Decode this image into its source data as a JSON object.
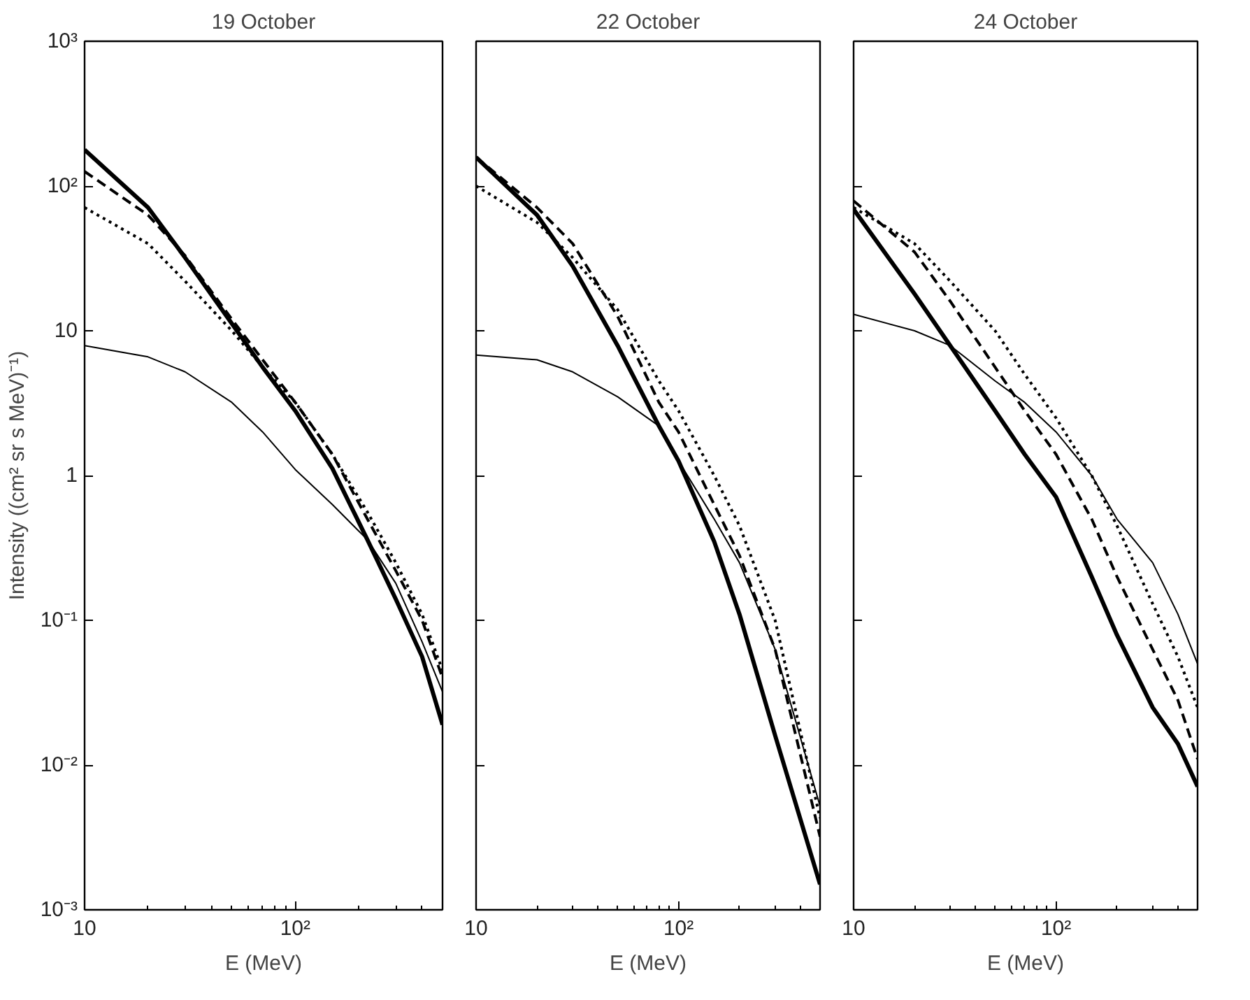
{
  "chart_data": [
    {
      "type": "line",
      "title": "19 October",
      "xlabel": "E (MeV)",
      "ylabel": "Intensity ((cm² sr s MeV)⁻¹)",
      "log": "xy",
      "grid": false,
      "xlim": [
        10,
        500
      ],
      "ylim": [
        0.001,
        1000
      ],
      "xticks": [
        10,
        {
          "value": 20,
          "label": null
        },
        {
          "value": 30,
          "label": null
        },
        {
          "value": 40,
          "label": null
        },
        {
          "value": 50,
          "label": null
        },
        {
          "value": 60,
          "label": null
        },
        {
          "value": 70,
          "label": null
        },
        {
          "value": 80,
          "label": null
        },
        {
          "value": 90,
          "label": null
        },
        {
          "value": 100,
          "label": "10²"
        },
        {
          "value": 200,
          "label": null
        },
        {
          "value": 300,
          "label": null
        },
        {
          "value": 400,
          "label": null
        },
        {
          "value": 500,
          "label": null
        }
      ],
      "yticks": [
        {
          "value": 0.001,
          "label": "10⁻³"
        },
        {
          "value": 0.01,
          "label": "10⁻²"
        },
        {
          "value": 0.1,
          "label": "10⁻¹"
        },
        1,
        10,
        {
          "value": 100,
          "label": "10²"
        },
        {
          "value": 1000,
          "label": "10³"
        }
      ],
      "x": [
        10,
        20,
        30,
        50,
        70,
        100,
        150,
        220,
        300,
        400,
        500
      ],
      "series": [
        {
          "color": "#000000",
          "line_style": "solid",
          "values": [
            178,
            71,
            32,
            11.2,
            5.6,
            2.8,
            1.12,
            0.36,
            0.14,
            0.056,
            0.019
          ]
        },
        {
          "color": "#000000",
          "line_style": "dashed",
          "values": [
            126,
            63,
            33,
            12,
            6.3,
            3.2,
            1.4,
            0.5,
            0.22,
            0.1,
            0.04
          ]
        },
        {
          "color": "#000000",
          "line_style": "dotted",
          "values": [
            71,
            40,
            22,
            10,
            5.6,
            3.2,
            1.4,
            0.56,
            0.25,
            0.11,
            0.045
          ]
        },
        {
          "color": "#000000",
          "line_style": "solid",
          "values": [
            7.9,
            6.6,
            5.2,
            3.2,
            2.0,
            1.1,
            0.63,
            0.36,
            0.18,
            0.071,
            0.032
          ]
        }
      ]
    },
    {
      "type": "line",
      "title": "22 October",
      "xlabel": "E (MeV)",
      "log": "xy",
      "grid": false,
      "tick_labels": "x",
      "xlim": [
        10,
        500
      ],
      "ylim": [
        0.001,
        1000
      ],
      "xticks": [
        10,
        {
          "value": 20,
          "label": null
        },
        {
          "value": 30,
          "label": null
        },
        {
          "value": 40,
          "label": null
        },
        {
          "value": 50,
          "label": null
        },
        {
          "value": 60,
          "label": null
        },
        {
          "value": 70,
          "label": null
        },
        {
          "value": 80,
          "label": null
        },
        {
          "value": 90,
          "label": null
        },
        {
          "value": 100,
          "label": "10²"
        },
        {
          "value": 200,
          "label": null
        },
        {
          "value": 300,
          "label": null
        },
        {
          "value": 400,
          "label": null
        },
        {
          "value": 500,
          "label": null
        }
      ],
      "yticks": [
        {
          "value": 0.001,
          "label": null
        },
        {
          "value": 0.01,
          "label": null
        },
        {
          "value": 0.1,
          "label": null
        },
        {
          "value": 1,
          "label": null
        },
        {
          "value": 10,
          "label": null
        },
        {
          "value": 100,
          "label": null
        },
        {
          "value": 1000,
          "label": null
        }
      ],
      "x": [
        10,
        20,
        30,
        50,
        80,
        100,
        150,
        200,
        300,
        500
      ],
      "series": [
        {
          "color": "#000000",
          "line_style": "solid",
          "values": [
            158,
            63,
            28,
            7.9,
            2.2,
            1.26,
            0.35,
            0.11,
            0.016,
            0.0015
          ]
        },
        {
          "color": "#000000",
          "line_style": "dashed",
          "values": [
            158,
            71,
            40,
            12.6,
            3.2,
            2.0,
            0.63,
            0.28,
            0.063,
            0.0032
          ]
        },
        {
          "color": "#000000",
          "line_style": "dotted",
          "values": [
            100,
            56,
            32,
            14,
            4.5,
            2.8,
            1.0,
            0.45,
            0.1,
            0.0043
          ]
        },
        {
          "color": "#000000",
          "line_style": "solid",
          "values": [
            6.8,
            6.3,
            5.2,
            3.5,
            2.2,
            1.26,
            0.5,
            0.25,
            0.063,
            0.0052
          ]
        }
      ]
    },
    {
      "type": "line",
      "title": "24 October",
      "xlabel": "E (MeV)",
      "log": "xy",
      "grid": false,
      "tick_labels": "x",
      "xlim": [
        10,
        500
      ],
      "ylim": [
        0.001,
        1000
      ],
      "xticks": [
        10,
        {
          "value": 20,
          "label": null
        },
        {
          "value": 30,
          "label": null
        },
        {
          "value": 40,
          "label": null
        },
        {
          "value": 50,
          "label": null
        },
        {
          "value": 60,
          "label": null
        },
        {
          "value": 70,
          "label": null
        },
        {
          "value": 80,
          "label": null
        },
        {
          "value": 90,
          "label": null
        },
        {
          "value": 100,
          "label": "10²"
        },
        {
          "value": 200,
          "label": null
        },
        {
          "value": 300,
          "label": null
        },
        {
          "value": 400,
          "label": null
        },
        {
          "value": 500,
          "label": null
        }
      ],
      "yticks": [
        {
          "value": 0.001,
          "label": null
        },
        {
          "value": 0.01,
          "label": null
        },
        {
          "value": 0.1,
          "label": null
        },
        {
          "value": 1,
          "label": null
        },
        {
          "value": 10,
          "label": null
        },
        {
          "value": 100,
          "label": null
        },
        {
          "value": 1000,
          "label": null
        }
      ],
      "x": [
        10,
        20,
        30,
        50,
        70,
        100,
        150,
        200,
        300,
        400,
        500
      ],
      "series": [
        {
          "color": "#000000",
          "line_style": "solid",
          "values": [
            69,
            18,
            7.9,
            2.8,
            1.4,
            0.71,
            0.2,
            0.079,
            0.025,
            0.014,
            0.0071
          ]
        },
        {
          "color": "#000000",
          "line_style": "dashed",
          "values": [
            79,
            35,
            16,
            5.6,
            2.8,
            1.4,
            0.5,
            0.2,
            0.063,
            0.028,
            0.011
          ]
        },
        {
          "color": "#000000",
          "line_style": "dotted",
          "values": [
            71,
            40,
            22,
            10,
            5,
            2.5,
            1.0,
            0.45,
            0.13,
            0.056,
            0.025
          ]
        },
        {
          "color": "#000000",
          "line_style": "solid",
          "values": [
            13,
            10,
            7.9,
            4.5,
            3.2,
            2.0,
            1.0,
            0.5,
            0.25,
            0.11,
            0.05
          ]
        }
      ]
    }
  ]
}
